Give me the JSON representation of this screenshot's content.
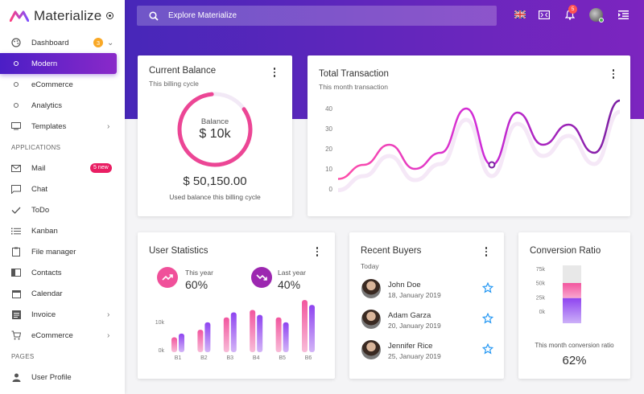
{
  "app": {
    "name": "Materialize"
  },
  "colors": {
    "primary": "#5b2ac3",
    "accent_pink": "#f0509a",
    "accent_purple": "#9c27b0",
    "orange_badge": "#f9a825",
    "new_badge": "#e91e63"
  },
  "sidebar": {
    "items": [
      {
        "label": "Dashboard",
        "icon": "palette-icon",
        "badge": "3"
      },
      {
        "label": "Modern",
        "active": true
      },
      {
        "label": "eCommerce"
      },
      {
        "label": "Analytics"
      },
      {
        "label": "Templates",
        "icon": "templates-icon"
      }
    ],
    "section_applications": "APPLICATIONS",
    "apps": [
      {
        "label": "Mail",
        "icon": "mail-icon",
        "badge": "5 new"
      },
      {
        "label": "Chat",
        "icon": "chat-icon"
      },
      {
        "label": "ToDo",
        "icon": "check-icon"
      },
      {
        "label": "Kanban",
        "icon": "list-icon"
      },
      {
        "label": "File manager",
        "icon": "clipboard-icon"
      },
      {
        "label": "Contacts",
        "icon": "contacts-icon"
      },
      {
        "label": "Calendar",
        "icon": "calendar-icon"
      },
      {
        "label": "Invoice",
        "icon": "invoice-icon"
      },
      {
        "label": "eCommerce",
        "icon": "cart-icon"
      }
    ],
    "section_pages": "PAGES",
    "pages": [
      {
        "label": "User Profile",
        "icon": "person-icon"
      }
    ]
  },
  "header": {
    "search_placeholder": "Explore Materialize",
    "notification_count": "5"
  },
  "current_balance": {
    "title": "Current Balance",
    "subtitle": "This billing cycle",
    "ring_label": "Balance",
    "ring_value": "$ 10k",
    "amount": "$ 50,150.00",
    "caption": "Used balance this billing cycle"
  },
  "total_transaction": {
    "title": "Total Transaction",
    "subtitle": "This month transaction",
    "y_ticks": [
      "40",
      "30",
      "20",
      "10",
      "0"
    ]
  },
  "user_statistics": {
    "title": "User Statistics",
    "this_year_label": "This year",
    "this_year_value": "60%",
    "last_year_label": "Last year",
    "last_year_value": "40%",
    "y_ticks": [
      "10k",
      "0k"
    ]
  },
  "recent_buyers": {
    "title": "Recent Buyers",
    "section": "Today",
    "buyers": [
      {
        "name": "John Doe",
        "date": "18, January 2019"
      },
      {
        "name": "Adam Garza",
        "date": "20, January 2019"
      },
      {
        "name": "Jennifer Rice",
        "date": "25, January 2019"
      }
    ]
  },
  "conversion_ratio": {
    "title": "Conversion Ratio",
    "y_ticks": [
      "75k",
      "50k",
      "25k",
      "0k"
    ],
    "caption": "This month conversion ratio",
    "value": "62%",
    "fill_fraction": 0.62
  },
  "chart_data": [
    {
      "type": "line",
      "title": "Total Transaction",
      "xlabel": "",
      "ylabel": "",
      "ylim": [
        0,
        45
      ],
      "series": [
        {
          "values": [
            5,
            12,
            22,
            10,
            18,
            40,
            12,
            38,
            22,
            32,
            18,
            44
          ]
        }
      ],
      "highlight_index": 6
    },
    {
      "type": "bar",
      "title": "User Statistics",
      "categories": [
        "B1",
        "B2",
        "B3",
        "B4",
        "B5",
        "B6"
      ],
      "ylim": [
        0,
        22000
      ],
      "series": [
        {
          "values": [
            6000,
            9000,
            14000,
            17000,
            14000,
            21000
          ]
        },
        {
          "values": [
            7500,
            12000,
            16000,
            15000,
            12000,
            19000
          ]
        }
      ]
    },
    {
      "type": "bar",
      "title": "Conversion Ratio",
      "categories": [
        ""
      ],
      "ylim": [
        0,
        100000
      ],
      "stack": [
        30000,
        20000
      ]
    }
  ]
}
